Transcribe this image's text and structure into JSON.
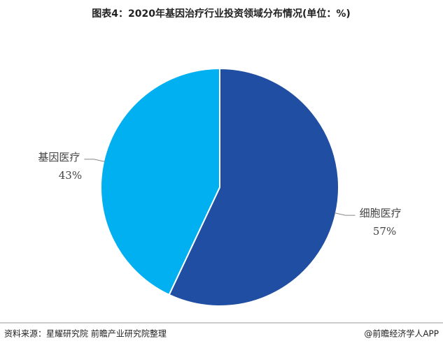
{
  "chart_data": {
    "type": "pie",
    "title": "图表4：2020年基因治疗行业投资领域分布情况(单位：%)",
    "categories": [
      "细胞医疗",
      "基因医疗"
    ],
    "values": [
      57,
      43
    ],
    "value_labels": [
      "57%",
      "43%"
    ],
    "colors": [
      "#1f4ea3",
      "#00b0f0"
    ],
    "source": "资料来源：星耀研究院 前瞻产业研究院整理",
    "credit": "@前瞻经济学人APP"
  }
}
